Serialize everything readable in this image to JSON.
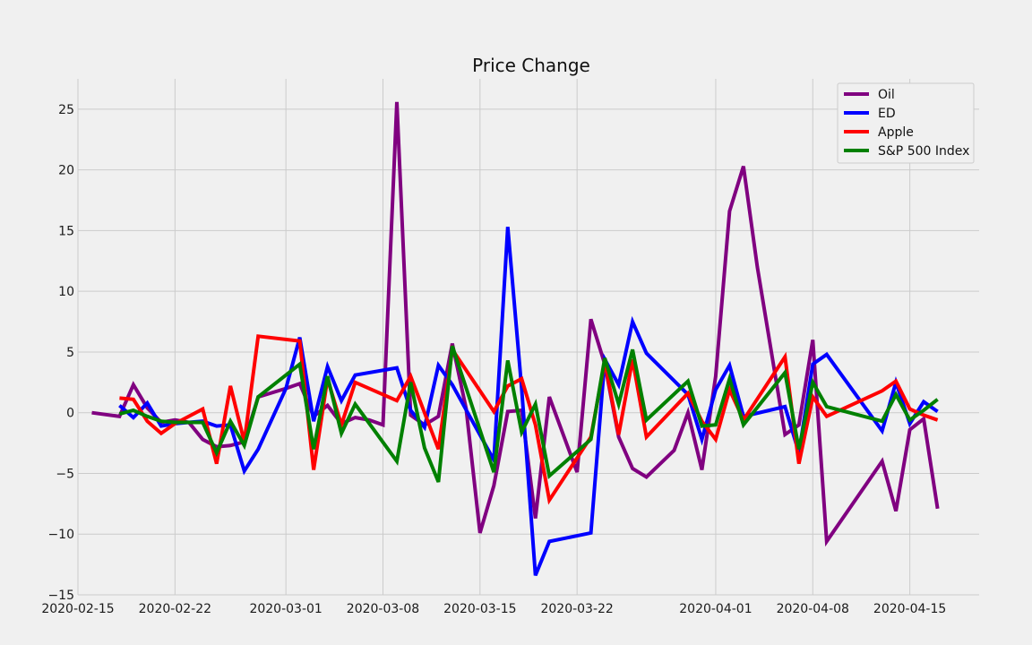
{
  "chart_data": {
    "type": "line",
    "title": "Price Change",
    "xlabel": "",
    "ylabel": "",
    "xlim": [
      "2020-02-15",
      "2020-04-20"
    ],
    "ylim": [
      -15,
      27.5
    ],
    "x_ticks": [
      "2020-02-15",
      "2020-02-22",
      "2020-03-01",
      "2020-03-08",
      "2020-03-15",
      "2020-03-22",
      "2020-04-01",
      "2020-04-08",
      "2020-04-15"
    ],
    "y_ticks": [
      -15,
      -10,
      -5,
      0,
      5,
      10,
      15,
      20,
      25
    ],
    "y_tick_labels": [
      "−15",
      "−10",
      "−5",
      "0",
      "5",
      "10",
      "15",
      "20",
      "25"
    ],
    "grid": true,
    "legend_position": "top-right",
    "series": [
      {
        "name": "Oil",
        "color": "#800080",
        "points": [
          [
            "2020-02-16",
            0.0
          ],
          [
            "2020-02-18",
            -0.3
          ],
          [
            "2020-02-19",
            2.3
          ],
          [
            "2020-02-20",
            0.4
          ],
          [
            "2020-02-21",
            -0.8
          ],
          [
            "2020-02-22",
            -0.6
          ],
          [
            "2020-02-23",
            -0.8
          ],
          [
            "2020-02-24",
            -2.2
          ],
          [
            "2020-02-25",
            -2.8
          ],
          [
            "2020-02-26",
            -2.7
          ],
          [
            "2020-02-27",
            -2.4
          ],
          [
            "2020-02-28",
            1.3
          ],
          [
            "2020-03-01",
            2.0
          ],
          [
            "2020-03-02",
            2.4
          ],
          [
            "2020-03-03",
            -0.3
          ],
          [
            "2020-03-04",
            0.6
          ],
          [
            "2020-03-05",
            -0.9
          ],
          [
            "2020-03-06",
            -0.4
          ],
          [
            "2020-03-07",
            -0.6
          ],
          [
            "2020-03-08",
            -1.0
          ],
          [
            "2020-03-09",
            25.6
          ],
          [
            "2020-03-10",
            -0.2
          ],
          [
            "2020-03-11",
            -1.0
          ],
          [
            "2020-03-12",
            -0.3
          ],
          [
            "2020-03-13",
            5.7
          ],
          [
            "2020-03-14",
            0.3
          ],
          [
            "2020-03-15",
            -9.9
          ],
          [
            "2020-03-16",
            -6.0
          ],
          [
            "2020-03-17",
            0.1
          ],
          [
            "2020-03-18",
            0.2
          ],
          [
            "2020-03-19",
            -8.7
          ],
          [
            "2020-03-20",
            1.3
          ],
          [
            "2020-03-21",
            -1.8
          ],
          [
            "2020-03-22",
            -4.9
          ],
          [
            "2020-03-23",
            7.7
          ],
          [
            "2020-03-24",
            4.0
          ],
          [
            "2020-03-25",
            -2.0
          ],
          [
            "2020-03-26",
            -4.6
          ],
          [
            "2020-03-27",
            -5.3
          ],
          [
            "2020-03-29",
            -3.1
          ],
          [
            "2020-03-30",
            0.0
          ],
          [
            "2020-03-31",
            -4.7
          ],
          [
            "2020-04-01",
            3.0
          ],
          [
            "2020-04-02",
            16.6
          ],
          [
            "2020-04-03",
            20.3
          ],
          [
            "2020-04-04",
            12.0
          ],
          [
            "2020-04-06",
            -1.8
          ],
          [
            "2020-04-07",
            -1.0
          ],
          [
            "2020-04-08",
            6.0
          ],
          [
            "2020-04-09",
            -10.6
          ],
          [
            "2020-04-13",
            -4.0
          ],
          [
            "2020-04-14",
            -8.1
          ],
          [
            "2020-04-15",
            -1.4
          ],
          [
            "2020-04-16",
            -0.5
          ],
          [
            "2020-04-17",
            -7.9
          ]
        ]
      },
      {
        "name": "ED",
        "color": "#0000ff",
        "points": [
          [
            "2020-02-18",
            0.6
          ],
          [
            "2020-02-19",
            -0.4
          ],
          [
            "2020-02-20",
            0.8
          ],
          [
            "2020-02-21",
            -1.1
          ],
          [
            "2020-02-22",
            -0.9
          ],
          [
            "2020-02-23",
            -0.8
          ],
          [
            "2020-02-24",
            -0.7
          ],
          [
            "2020-02-25",
            -1.1
          ],
          [
            "2020-02-26",
            -1.0
          ],
          [
            "2020-02-27",
            -4.8
          ],
          [
            "2020-02-28",
            -3.0
          ],
          [
            "2020-03-01",
            2.0
          ],
          [
            "2020-03-02",
            6.2
          ],
          [
            "2020-03-03",
            -0.7
          ],
          [
            "2020-03-04",
            3.8
          ],
          [
            "2020-03-05",
            1.0
          ],
          [
            "2020-03-06",
            3.1
          ],
          [
            "2020-03-09",
            3.7
          ],
          [
            "2020-03-10",
            0.2
          ],
          [
            "2020-03-11",
            -1.2
          ],
          [
            "2020-03-12",
            3.9
          ],
          [
            "2020-03-13",
            2.3
          ],
          [
            "2020-03-16",
            -3.9
          ],
          [
            "2020-03-17",
            15.3
          ],
          [
            "2020-03-18",
            2.0
          ],
          [
            "2020-03-19",
            -13.4
          ],
          [
            "2020-03-20",
            -10.6
          ],
          [
            "2020-03-23",
            -9.9
          ],
          [
            "2020-03-24",
            4.4
          ],
          [
            "2020-03-25",
            2.3
          ],
          [
            "2020-03-26",
            7.5
          ],
          [
            "2020-03-27",
            4.9
          ],
          [
            "2020-03-30",
            1.5
          ],
          [
            "2020-03-31",
            -2.2
          ],
          [
            "2020-04-01",
            1.9
          ],
          [
            "2020-04-02",
            3.9
          ],
          [
            "2020-04-03",
            -0.3
          ],
          [
            "2020-04-06",
            0.5
          ],
          [
            "2020-04-07",
            -3.3
          ],
          [
            "2020-04-08",
            4.0
          ],
          [
            "2020-04-09",
            4.8
          ],
          [
            "2020-04-13",
            -1.5
          ],
          [
            "2020-04-14",
            2.5
          ],
          [
            "2020-04-15",
            -0.9
          ],
          [
            "2020-04-16",
            0.9
          ],
          [
            "2020-04-17",
            0.1
          ]
        ]
      },
      {
        "name": "Apple",
        "color": "#ff0000",
        "points": [
          [
            "2020-02-18",
            1.2
          ],
          [
            "2020-02-19",
            1.1
          ],
          [
            "2020-02-20",
            -0.7
          ],
          [
            "2020-02-21",
            -1.7
          ],
          [
            "2020-02-22",
            -0.9
          ],
          [
            "2020-02-24",
            0.3
          ],
          [
            "2020-02-25",
            -4.2
          ],
          [
            "2020-02-26",
            2.2
          ],
          [
            "2020-02-27",
            -2.4
          ],
          [
            "2020-02-28",
            6.3
          ],
          [
            "2020-03-02",
            5.9
          ],
          [
            "2020-03-03",
            -4.7
          ],
          [
            "2020-03-04",
            2.8
          ],
          [
            "2020-03-05",
            -1.0
          ],
          [
            "2020-03-06",
            2.5
          ],
          [
            "2020-03-09",
            1.0
          ],
          [
            "2020-03-10",
            3.0
          ],
          [
            "2020-03-12",
            -3.0
          ],
          [
            "2020-03-13",
            5.2
          ],
          [
            "2020-03-16",
            0.1
          ],
          [
            "2020-03-17",
            2.2
          ],
          [
            "2020-03-18",
            2.8
          ],
          [
            "2020-03-19",
            -1.0
          ],
          [
            "2020-03-20",
            -7.2
          ],
          [
            "2020-03-23",
            -2.0
          ],
          [
            "2020-03-24",
            4.2
          ],
          [
            "2020-03-25",
            -1.8
          ],
          [
            "2020-03-26",
            4.4
          ],
          [
            "2020-03-27",
            -2.0
          ],
          [
            "2020-03-30",
            1.6
          ],
          [
            "2020-03-31",
            -0.7
          ],
          [
            "2020-04-01",
            -2.2
          ],
          [
            "2020-04-02",
            1.9
          ],
          [
            "2020-04-03",
            -0.6
          ],
          [
            "2020-04-06",
            4.6
          ],
          [
            "2020-04-07",
            -4.2
          ],
          [
            "2020-04-08",
            1.3
          ],
          [
            "2020-04-09",
            -0.3
          ],
          [
            "2020-04-13",
            1.8
          ],
          [
            "2020-04-14",
            2.6
          ],
          [
            "2020-04-15",
            0.3
          ],
          [
            "2020-04-16",
            -0.2
          ],
          [
            "2020-04-17",
            -0.6
          ]
        ]
      },
      {
        "name": "S&P 500 Index",
        "color": "#008000",
        "points": [
          [
            "2020-02-18",
            -0.1
          ],
          [
            "2020-02-19",
            0.2
          ],
          [
            "2020-02-20",
            -0.3
          ],
          [
            "2020-02-21",
            -0.7
          ],
          [
            "2020-02-22",
            -0.8
          ],
          [
            "2020-02-24",
            -0.8
          ],
          [
            "2020-02-25",
            -3.3
          ],
          [
            "2020-02-26",
            -0.7
          ],
          [
            "2020-02-27",
            -2.7
          ],
          [
            "2020-02-28",
            1.3
          ],
          [
            "2020-03-02",
            4.0
          ],
          [
            "2020-03-03",
            -3.0
          ],
          [
            "2020-03-04",
            3.0
          ],
          [
            "2020-03-05",
            -1.7
          ],
          [
            "2020-03-06",
            0.7
          ],
          [
            "2020-03-09",
            -4.0
          ],
          [
            "2020-03-10",
            2.5
          ],
          [
            "2020-03-11",
            -2.9
          ],
          [
            "2020-03-12",
            -5.7
          ],
          [
            "2020-03-13",
            5.5
          ],
          [
            "2020-03-16",
            -4.9
          ],
          [
            "2020-03-17",
            4.3
          ],
          [
            "2020-03-18",
            -1.6
          ],
          [
            "2020-03-19",
            0.7
          ],
          [
            "2020-03-20",
            -5.2
          ],
          [
            "2020-03-23",
            -2.2
          ],
          [
            "2020-03-24",
            4.5
          ],
          [
            "2020-03-25",
            0.7
          ],
          [
            "2020-03-26",
            5.2
          ],
          [
            "2020-03-27",
            -0.6
          ],
          [
            "2020-03-30",
            2.6
          ],
          [
            "2020-03-31",
            -1.1
          ],
          [
            "2020-04-01",
            -1.0
          ],
          [
            "2020-04-02",
            2.8
          ],
          [
            "2020-04-03",
            -1.0
          ],
          [
            "2020-04-06",
            3.3
          ],
          [
            "2020-04-07",
            -3.0
          ],
          [
            "2020-04-08",
            2.5
          ],
          [
            "2020-04-09",
            0.5
          ],
          [
            "2020-04-13",
            -0.7
          ],
          [
            "2020-04-14",
            1.5
          ],
          [
            "2020-04-15",
            -0.6
          ],
          [
            "2020-04-16",
            0.2
          ],
          [
            "2020-04-17",
            1.1
          ]
        ]
      }
    ]
  }
}
